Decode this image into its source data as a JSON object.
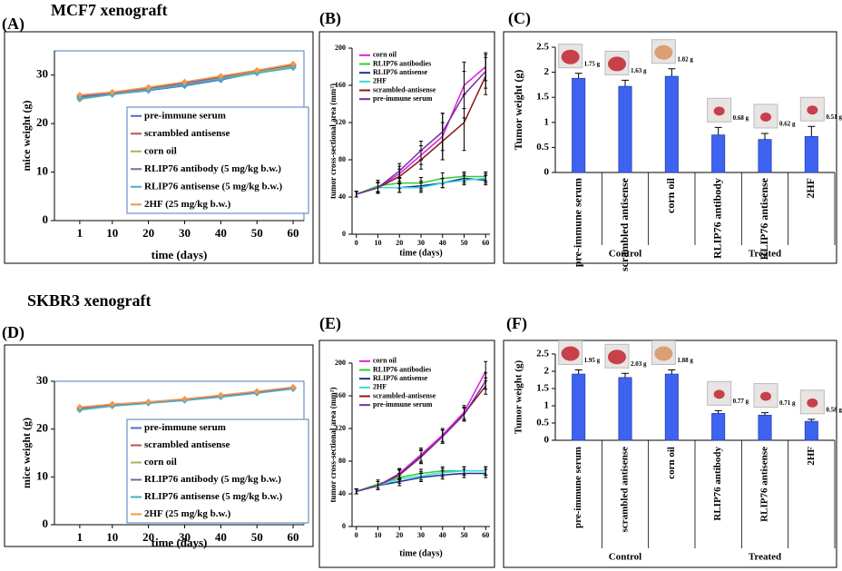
{
  "headings": [
    "MCF7 xenograft",
    "SKBR3 xenograft"
  ],
  "chart_data": [
    {
      "type": "line",
      "panel": "(A)",
      "xlabel": "time (days)",
      "ylabel": "mice weight (g)",
      "x": [
        1,
        10,
        20,
        30,
        40,
        50,
        60
      ],
      "xlim": [
        -6,
        63
      ],
      "xticks": [
        1,
        10,
        20,
        30,
        40,
        50,
        60
      ],
      "ylim": [
        0,
        35
      ],
      "yticks": [
        0,
        10,
        20,
        30
      ],
      "legend": "lower right",
      "series": [
        {
          "name": "pre-immune serum",
          "color": "#4472c4",
          "values": [
            25.5,
            26,
            26.8,
            27.8,
            29,
            30.5,
            31.6
          ]
        },
        {
          "name": "scrambled antisense",
          "color": "#c0504d",
          "values": [
            25.8,
            26.3,
            27.2,
            28.3,
            29.5,
            30.8,
            32
          ]
        },
        {
          "name": "corn oil",
          "color": "#9bbb59",
          "values": [
            25,
            26,
            27,
            28,
            29.3,
            30.6,
            31.8
          ]
        },
        {
          "name": "RLIP76 antibody (5 mg/kg b.w.)",
          "color": "#8064a2",
          "values": [
            25.6,
            26.4,
            27.3,
            28.4,
            29.6,
            30.9,
            32.1
          ]
        },
        {
          "name": "RLIP76 antisense (5 mg/kg b.w.)",
          "color": "#4bacc6",
          "values": [
            25.2,
            26,
            26.9,
            28,
            29.2,
            30.4,
            31.5
          ]
        },
        {
          "name": "2HF (25 mg/kg b.w.)",
          "color": "#f79646",
          "values": [
            25.9,
            26.5,
            27.5,
            28.6,
            29.8,
            31,
            32.3
          ]
        }
      ]
    },
    {
      "type": "line",
      "panel": "(B)",
      "xlabel": "time (days)",
      "ylabel": "tumor cross-sectional area (mm²)",
      "x": [
        0,
        10,
        20,
        30,
        40,
        50,
        60
      ],
      "xlim": [
        -2,
        62
      ],
      "xticks": [
        0,
        10,
        20,
        30,
        40,
        50,
        60
      ],
      "ylim": [
        0,
        200
      ],
      "yticks": [
        0,
        40,
        80,
        120,
        160,
        200
      ],
      "legend": "upper left",
      "series": [
        {
          "name": "corn oil",
          "color": "#e020e0",
          "values": [
            43,
            50,
            65,
            85,
            105,
            160,
            180
          ],
          "errors": [
            3,
            6,
            8,
            10,
            25,
            25,
            15
          ]
        },
        {
          "name": "RLIP76 antibodies",
          "color": "#33cc33",
          "values": [
            43,
            52,
            55,
            55,
            60,
            62,
            62
          ],
          "errors": [
            3,
            6,
            6,
            6,
            6,
            5,
            5
          ]
        },
        {
          "name": "RLIP76 antisense",
          "color": "#1f2f8f",
          "values": [
            43,
            50,
            50,
            52,
            55,
            60,
            58
          ],
          "errors": [
            3,
            6,
            5,
            5,
            5,
            5,
            5
          ]
        },
        {
          "name": "2HF",
          "color": "#33dddd",
          "values": [
            43,
            50,
            50,
            50,
            55,
            58,
            60
          ],
          "errors": [
            3,
            5,
            5,
            5,
            5,
            5,
            5
          ]
        },
        {
          "name": "scrambled-antisense",
          "color": "#8b1a1a",
          "values": [
            43,
            50,
            62,
            80,
            100,
            120,
            170
          ],
          "errors": [
            3,
            6,
            8,
            10,
            20,
            30,
            20
          ]
        },
        {
          "name": "pre-immune serum",
          "color": "#7030a0",
          "values": [
            43,
            50,
            68,
            90,
            110,
            150,
            175
          ],
          "errors": [
            3,
            6,
            8,
            10,
            20,
            25,
            18
          ]
        }
      ]
    },
    {
      "type": "bar",
      "panel": "(C)",
      "ylabel": "Tumor weight (g)",
      "color": "#3d63f0",
      "categories": [
        "pre-immune serum",
        "scrambled antisense",
        "corn oil",
        "RLIP76 antibody",
        "RLIP76 antisense",
        "2HF"
      ],
      "values": [
        1.88,
        1.72,
        1.92,
        0.75,
        0.66,
        0.72
      ],
      "errors": [
        0.1,
        0.12,
        0.15,
        0.15,
        0.12,
        0.2
      ],
      "ylim": [
        0,
        2.5
      ],
      "yticks": [
        0,
        0.5,
        1,
        1.5,
        2,
        2.5
      ],
      "groups": [
        "Control",
        "Treated"
      ],
      "image_captions": [
        "1.75 g",
        "1.63 g",
        "1.82 g",
        "0.68 g",
        "0.62 g",
        "0.51 g"
      ]
    },
    {
      "type": "line",
      "panel": "(D)",
      "xlabel": "time (days)",
      "ylabel": "mice weight (g)",
      "x": [
        1,
        10,
        20,
        30,
        40,
        50,
        60
      ],
      "xlim": [
        -6,
        63
      ],
      "xticks": [
        1,
        10,
        20,
        30,
        40,
        50,
        60
      ],
      "ylim": [
        0,
        30
      ],
      "yticks": [
        0,
        10,
        20,
        30
      ],
      "legend": "lower right",
      "series": [
        {
          "name": "pre-immune serum",
          "color": "#4472c4",
          "values": [
            24.3,
            25,
            25.5,
            26,
            26.8,
            27.6,
            28.5
          ]
        },
        {
          "name": "scrambled antisense",
          "color": "#c0504d",
          "values": [
            24.5,
            25.2,
            25.6,
            26.2,
            27,
            27.8,
            28.7
          ]
        },
        {
          "name": "corn oil",
          "color": "#9bbb59",
          "values": [
            24.2,
            24.9,
            25.5,
            26.1,
            26.9,
            27.7,
            28.6
          ]
        },
        {
          "name": "RLIP76 antibody (5 mg/kg b.w.)",
          "color": "#8064a2",
          "values": [
            24.4,
            25.1,
            25.6,
            26.2,
            27,
            27.8,
            28.6
          ]
        },
        {
          "name": "RLIP76 antisense (5 mg/kg b.w.)",
          "color": "#4bacc6",
          "values": [
            24,
            24.8,
            25.4,
            26,
            26.7,
            27.5,
            28.4
          ]
        },
        {
          "name": "2HF (25 mg/kg b.w.)",
          "color": "#f79646",
          "values": [
            24.6,
            25.2,
            25.7,
            26.3,
            27.1,
            27.9,
            28.8
          ]
        }
      ]
    },
    {
      "type": "line",
      "panel": "(E)",
      "xlabel": "time (days)",
      "ylabel": "tumor cross-sectional area (mm²)",
      "x": [
        0,
        10,
        20,
        30,
        40,
        50,
        60
      ],
      "xlim": [
        -2,
        62
      ],
      "xticks": [
        0,
        10,
        20,
        30,
        40,
        50,
        60
      ],
      "ylim": [
        0,
        200
      ],
      "yticks": [
        0,
        40,
        80,
        120,
        160,
        200
      ],
      "legend": "upper left",
      "series": [
        {
          "name": "corn oil",
          "color": "#e020e0",
          "values": [
            43,
            50,
            65,
            88,
            112,
            140,
            190
          ],
          "errors": [
            3,
            5,
            6,
            8,
            8,
            8,
            12
          ]
        },
        {
          "name": "RLIP76 antibodies",
          "color": "#33cc33",
          "values": [
            43,
            52,
            60,
            65,
            68,
            68,
            68
          ],
          "errors": [
            3,
            5,
            5,
            5,
            5,
            5,
            5
          ]
        },
        {
          "name": "RLIP76 antisense",
          "color": "#1f2f8f",
          "values": [
            43,
            50,
            55,
            60,
            63,
            65,
            65
          ],
          "errors": [
            3,
            5,
            5,
            5,
            5,
            5,
            5
          ]
        },
        {
          "name": "2HF",
          "color": "#33dddd",
          "values": [
            43,
            50,
            58,
            62,
            66,
            68,
            68
          ],
          "errors": [
            3,
            5,
            5,
            5,
            5,
            5,
            5
          ]
        },
        {
          "name": "scrambled-antisense",
          "color": "#8b1a1a",
          "values": [
            43,
            50,
            63,
            85,
            110,
            138,
            172
          ],
          "errors": [
            3,
            5,
            6,
            8,
            8,
            8,
            10
          ]
        },
        {
          "name": "pre-immune serum",
          "color": "#7030a0",
          "values": [
            43,
            50,
            64,
            86,
            110,
            137,
            178
          ],
          "errors": [
            3,
            5,
            6,
            8,
            8,
            8,
            10
          ]
        }
      ]
    },
    {
      "type": "bar",
      "panel": "(F)",
      "ylabel": "Tumor weight (g)",
      "color": "#3d63f0",
      "categories": [
        "pre-immune serum",
        "scrambled antisense",
        "corn oil",
        "RLIP76 antibody",
        "RLIP76 antisense",
        "2HF"
      ],
      "values": [
        1.92,
        1.82,
        1.92,
        0.78,
        0.73,
        0.55
      ],
      "errors": [
        0.12,
        0.12,
        0.12,
        0.08,
        0.07,
        0.06
      ],
      "ylim": [
        0,
        2.5
      ],
      "yticks": [
        0,
        0.5,
        1,
        1.5,
        2,
        2.5
      ],
      "groups": [
        "Control",
        "Treated"
      ],
      "image_captions": [
        "1.95 g",
        "2.03 g",
        "1.88 g",
        "0.77 g",
        "0.71 g",
        "0.58 g"
      ]
    }
  ]
}
